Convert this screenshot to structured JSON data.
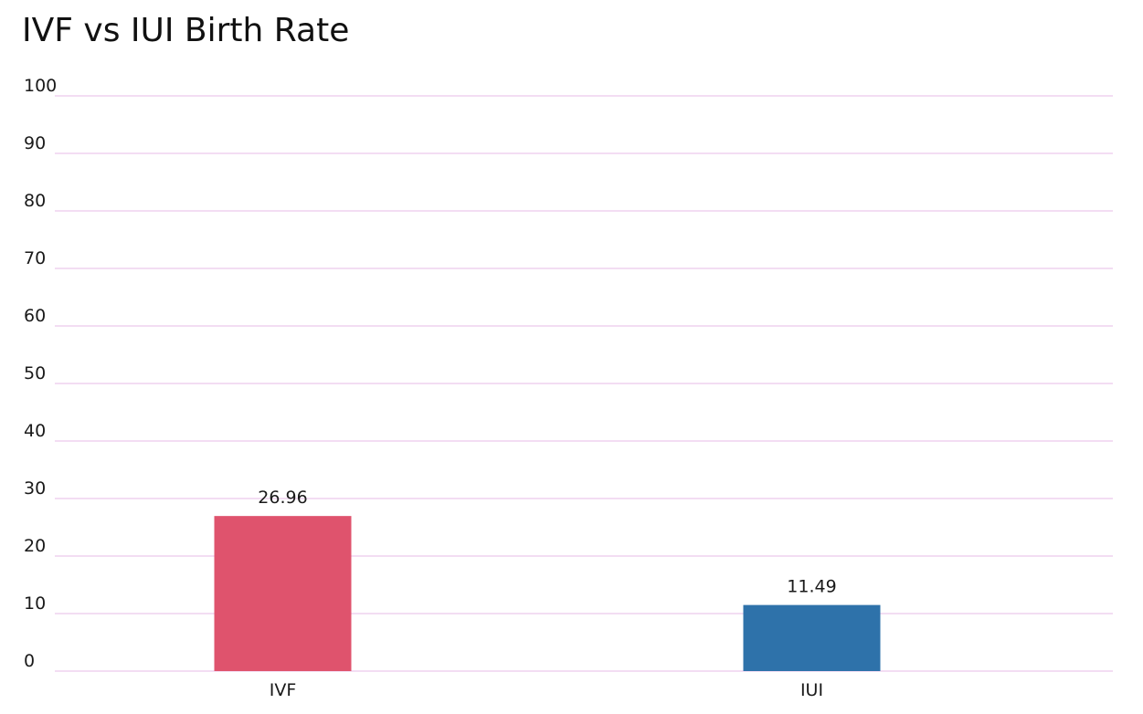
{
  "chart_data": {
    "type": "bar",
    "title": "IVF vs IUI Birth Rate",
    "xlabel": "",
    "ylabel": "",
    "categories": [
      "IVF",
      "IUI"
    ],
    "values": [
      26.96,
      11.49
    ],
    "value_labels": [
      "26.96",
      "11.49"
    ],
    "colors": [
      "#df536d",
      "#2e72aa"
    ],
    "ylim": [
      0,
      100
    ],
    "yticks": [
      0,
      10,
      20,
      30,
      40,
      50,
      60,
      70,
      80,
      90,
      100
    ],
    "ytick_labels": [
      "0",
      "10",
      "20",
      "30",
      "40",
      "50",
      "60",
      "70",
      "80",
      "90",
      "100"
    ],
    "grid": true,
    "grid_color": "#f3ddf3",
    "legend": "none"
  }
}
